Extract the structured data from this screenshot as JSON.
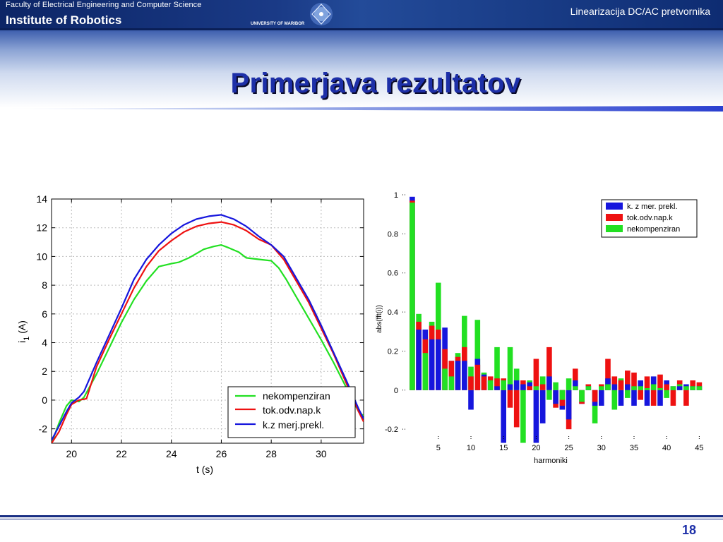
{
  "header": {
    "faculty": "Faculty of Electrical Engineering and Computer Science",
    "institute": "Institute of Robotics",
    "university": "UNIVERSITY OF MARIBOR",
    "course_title": "Linearizacija DC/AC pretvornika"
  },
  "slide": {
    "title": "Primerjava rezultatov",
    "page_number": "18"
  },
  "colors": {
    "header_blue": "#1a3a86",
    "title_blue": "#1d2fa8",
    "series_green": "#22e022",
    "series_red": "#ee1111",
    "series_blue": "#1616dd"
  },
  "chart_data": [
    {
      "type": "line",
      "xlabel": "t (s)",
      "ylabel": "i",
      "ylabel_subscript": "1",
      "ylabel_unit": "(A)",
      "xlim": [
        19.2,
        31.7
      ],
      "ylim": [
        -3,
        14
      ],
      "xticks": [
        "20",
        "22",
        "24",
        "26",
        "28",
        "30"
      ],
      "xtick_values": [
        20,
        22,
        24,
        26,
        28,
        30
      ],
      "yticks": [
        "14",
        "12",
        "10",
        "8",
        "6",
        "4",
        "2",
        "0",
        "-2"
      ],
      "ytick_values": [
        14,
        12,
        10,
        8,
        6,
        4,
        2,
        0,
        -2
      ],
      "grid": true,
      "legend": "bottom-right",
      "series": [
        {
          "name": "nekompenziran",
          "color": "#22e022",
          "x": [
            19.2,
            19.5,
            19.8,
            20.0,
            20.3,
            20.5,
            21.0,
            21.5,
            22.0,
            22.5,
            23.0,
            23.5,
            24.0,
            24.3,
            24.7,
            25.0,
            25.3,
            25.7,
            26.0,
            26.3,
            26.7,
            27.0,
            27.5,
            28.0,
            28.3,
            28.6,
            29.0,
            29.5,
            30.0,
            30.5,
            31.0,
            31.5,
            31.7
          ],
          "values": [
            -3.0,
            -1.6,
            -0.4,
            0.0,
            -0.1,
            0.2,
            1.8,
            3.6,
            5.4,
            7.0,
            8.3,
            9.3,
            9.5,
            9.6,
            9.9,
            10.2,
            10.5,
            10.7,
            10.8,
            10.6,
            10.3,
            9.9,
            9.8,
            9.7,
            9.2,
            8.4,
            7.2,
            5.7,
            4.2,
            2.6,
            0.9,
            -0.8,
            -1.1
          ]
        },
        {
          "name": "tok.odv.nap.k",
          "color": "#ee1111",
          "x": [
            19.2,
            19.5,
            19.8,
            20.0,
            20.3,
            20.6,
            21.0,
            21.5,
            22.0,
            22.5,
            23.0,
            23.5,
            24.0,
            24.5,
            25.0,
            25.5,
            26.0,
            26.5,
            27.0,
            27.5,
            28.0,
            28.5,
            29.0,
            29.5,
            30.0,
            30.5,
            31.0,
            31.5,
            31.7
          ],
          "values": [
            -3.0,
            -2.2,
            -1.0,
            -0.3,
            0.0,
            0.1,
            2.3,
            4.2,
            6.0,
            7.8,
            9.3,
            10.4,
            11.1,
            11.7,
            12.1,
            12.3,
            12.4,
            12.2,
            11.8,
            11.2,
            10.8,
            9.8,
            8.3,
            6.8,
            5.0,
            3.2,
            1.2,
            -0.8,
            -1.5
          ]
        },
        {
          "name": "k.z merj.prekl.",
          "color": "#1616dd",
          "x": [
            19.2,
            19.5,
            19.8,
            20.0,
            20.3,
            20.5,
            21.0,
            21.5,
            22.0,
            22.5,
            23.0,
            23.5,
            24.0,
            24.5,
            25.0,
            25.5,
            26.0,
            26.5,
            27.0,
            27.5,
            28.0,
            28.5,
            29.0,
            29.5,
            30.0,
            30.5,
            31.0,
            31.5,
            31.7
          ],
          "values": [
            -2.8,
            -1.8,
            -0.8,
            -0.2,
            0.2,
            0.6,
            2.6,
            4.5,
            6.4,
            8.4,
            9.8,
            10.8,
            11.6,
            12.2,
            12.6,
            12.8,
            12.9,
            12.6,
            12.1,
            11.4,
            10.8,
            10.0,
            8.5,
            7.0,
            5.2,
            3.3,
            1.4,
            -0.6,
            -1.3
          ]
        }
      ]
    },
    {
      "type": "bar",
      "xlabel": "harmoniki",
      "ylabel": "abs(fft(i))",
      "ylim": [
        -0.25,
        1.0
      ],
      "yticks": [
        "1",
        "0.8",
        "0.6",
        "0.4",
        "0.2",
        "0",
        "-0.2"
      ],
      "ytick_values": [
        1,
        0.8,
        0.6,
        0.4,
        0.2,
        0,
        -0.2
      ],
      "xticks": [
        "5",
        "10",
        "15",
        "20",
        "25",
        "30",
        "35",
        "40",
        "45"
      ],
      "xtick_values": [
        5,
        10,
        15,
        20,
        25,
        30,
        35,
        40,
        45
      ],
      "xlim": [
        -0.5,
        45.5
      ],
      "legend": "top-right",
      "categories": [
        1,
        2,
        3,
        4,
        5,
        6,
        7,
        8,
        9,
        10,
        11,
        12,
        13,
        14,
        15,
        16,
        17,
        18,
        19,
        20,
        21,
        22,
        23,
        24,
        25,
        26,
        27,
        28,
        29,
        30,
        31,
        32,
        33,
        34,
        35,
        36,
        37,
        38,
        39,
        40,
        41,
        42,
        43,
        44,
        45
      ],
      "series": [
        {
          "name": "k. z mer. prekl.",
          "color": "#1616dd",
          "values": [
            0.99,
            0.31,
            0.31,
            0.26,
            0.26,
            0.32,
            0.15,
            0.15,
            0.15,
            -0.1,
            0.16,
            0.08,
            0.05,
            0.02,
            -0.27,
            0.03,
            0.05,
            0.03,
            0.04,
            -0.27,
            -0.17,
            0.07,
            -0.07,
            -0.1,
            -0.15,
            0.05,
            -0.07,
            0.02,
            -0.08,
            -0.08,
            0.06,
            0.03,
            -0.08,
            0.03,
            -0.08,
            0.05,
            -0.08,
            0.07,
            -0.08,
            0.05,
            0.02,
            0.02,
            0.03,
            0.02,
            0.02
          ]
        },
        {
          "name": "tok.odv.nap.k",
          "color": "#ee1111",
          "values": [
            0.97,
            0.35,
            0.26,
            0.33,
            0.31,
            0.21,
            0.15,
            0.17,
            0.22,
            0.07,
            0.13,
            0.07,
            0.07,
            0.06,
            0.06,
            -0.09,
            -0.19,
            0.05,
            0.02,
            0.16,
            0.03,
            0.22,
            -0.09,
            -0.08,
            -0.2,
            0.11,
            -0.07,
            0.03,
            -0.06,
            0.03,
            0.16,
            0.07,
            0.05,
            0.1,
            0.09,
            -0.05,
            0.07,
            -0.08,
            0.08,
            0.03,
            -0.08,
            0.05,
            -0.08,
            0.05,
            0.04
          ]
        },
        {
          "name": "nekompenziran",
          "color": "#22e022",
          "values": [
            0.96,
            0.39,
            0.19,
            0.35,
            0.55,
            0.11,
            0.07,
            0.19,
            0.38,
            0.12,
            0.36,
            0.09,
            0.05,
            0.22,
            0.05,
            0.22,
            0.11,
            -0.27,
            0.05,
            0.02,
            0.07,
            -0.05,
            0.04,
            -0.05,
            0.06,
            0.02,
            -0.06,
            0.02,
            -0.17,
            0.02,
            0.03,
            -0.1,
            0.06,
            -0.04,
            0.02,
            0.02,
            0.01,
            0.03,
            0.01,
            -0.04,
            0.02,
            0.03,
            0.02,
            0.02,
            0.02
          ]
        }
      ]
    }
  ]
}
